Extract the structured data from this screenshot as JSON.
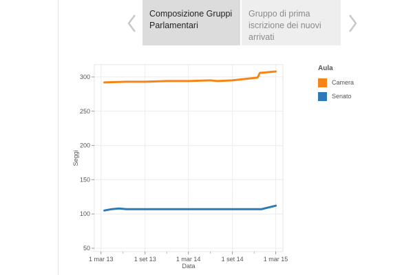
{
  "nav": {
    "prev_icon": "chevron-left-icon",
    "next_icon": "chevron-right-icon",
    "tabs": [
      {
        "label": "Composizione Gruppi Parlamentari",
        "active": true
      },
      {
        "label": "Gruppo di prima iscrizione dei nuovi arrivati",
        "active": false
      }
    ]
  },
  "chart_data": {
    "type": "line",
    "xlabel": "Data",
    "ylabel": "Seggi",
    "ylim": [
      45,
      318
    ],
    "xlim": [
      "2013-02-01",
      "2015-03-31"
    ],
    "grid": true,
    "legend_position": "right",
    "y_ticks": [
      50,
      100,
      150,
      200,
      250,
      300
    ],
    "x_ticks": [
      {
        "date": "2013-03-01",
        "label": "1 mar 13"
      },
      {
        "date": "2013-09-01",
        "label": "1 set 13"
      },
      {
        "date": "2014-03-01",
        "label": "1 mar 14"
      },
      {
        "date": "2014-09-01",
        "label": "1 set 14"
      },
      {
        "date": "2015-03-01",
        "label": "1 mar 15"
      }
    ],
    "legend_title": "Aula",
    "series": [
      {
        "name": "Camera",
        "color": "#f58518",
        "points": [
          [
            "2013-03-15",
            292
          ],
          [
            "2013-06-15",
            293
          ],
          [
            "2013-09-01",
            293
          ],
          [
            "2013-12-01",
            294
          ],
          [
            "2014-03-01",
            294
          ],
          [
            "2014-06-01",
            295
          ],
          [
            "2014-07-01",
            294
          ],
          [
            "2014-09-01",
            295
          ],
          [
            "2014-12-15",
            299
          ],
          [
            "2014-12-25",
            306
          ],
          [
            "2015-03-01",
            308
          ]
        ]
      },
      {
        "name": "Senato",
        "color": "#2c7bb6",
        "points": [
          [
            "2013-03-15",
            105
          ],
          [
            "2013-04-15",
            107
          ],
          [
            "2013-05-15",
            108
          ],
          [
            "2013-06-15",
            107
          ],
          [
            "2013-09-01",
            107
          ],
          [
            "2014-03-01",
            107
          ],
          [
            "2014-09-01",
            107
          ],
          [
            "2014-12-01",
            107
          ],
          [
            "2015-01-01",
            107
          ],
          [
            "2015-03-01",
            112
          ]
        ]
      }
    ]
  }
}
